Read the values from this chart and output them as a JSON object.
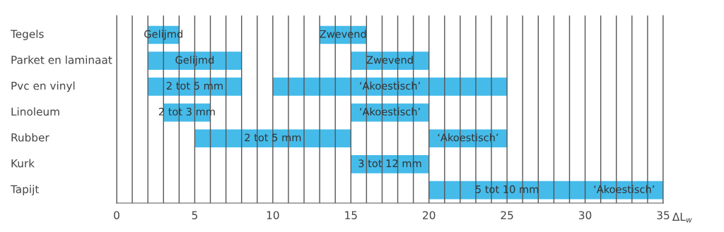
{
  "chart_data": {
    "type": "bar",
    "orientation": "horizontal",
    "xlabel": "ΔL$_{w}$",
    "categories": [
      "Tegels",
      "Parket en laminaat",
      "Pvc en vinyl",
      "Linoleum",
      "Rubber",
      "Kurk",
      "Tapijt"
    ],
    "series": [
      {
        "color": "#45bbea",
        "base": [
          2,
          2,
          2,
          3,
          5,
          null,
          20
        ],
        "values": [
          2,
          6,
          6,
          3,
          10,
          null,
          10
        ]
      },
      {
        "color": "#45bbea",
        "base": [
          13,
          15,
          10,
          15,
          20,
          15,
          30
        ],
        "values": [
          3,
          5,
          15,
          5,
          5,
          5,
          5
        ]
      }
    ],
    "annotations": [
      {
        "text": "Gelijmd",
        "x": 3,
        "y": "Tegels"
      },
      {
        "text": "Zwevend",
        "x": 14.5,
        "y": "Tegels"
      },
      {
        "text": "Gelijmd",
        "x": 5,
        "y": "Parket en laminaat"
      },
      {
        "text": "Zwevend",
        "x": 17.5,
        "y": "Parket en laminaat"
      },
      {
        "text": "2 tot 5 mm",
        "x": 5,
        "y": "Pvc en vinyl"
      },
      {
        "text": "‘Akoestisch’",
        "x": 17.5,
        "y": "Pvc en vinyl"
      },
      {
        "text": "2 tot 3 mm",
        "x": 4.5,
        "y": "Linoleum"
      },
      {
        "text": "‘Akoestisch’",
        "x": 17.5,
        "y": "Linoleum"
      },
      {
        "text": "2 tot 5 mm",
        "x": 10,
        "y": "Rubber"
      },
      {
        "text": "‘Akoestisch’",
        "x": 22.5,
        "y": "Rubber"
      },
      {
        "text": "3 tot 12 mm",
        "x": 17.5,
        "y": "Kurk"
      },
      {
        "text": "5 tot 10 mm",
        "x": 25,
        "y": "Tapijt"
      },
      {
        "text": "‘Akoestisch’",
        "x": 32.5,
        "y": "Tapijt"
      }
    ],
    "xlim": [
      0,
      35
    ],
    "xticks": [
      0,
      {
        "value": 1,
        "label": null
      },
      {
        "value": 2,
        "label": null
      },
      {
        "value": 3,
        "label": null
      },
      {
        "value": 4,
        "label": null
      },
      5,
      {
        "value": 6,
        "label": null
      },
      {
        "value": 7,
        "label": null
      },
      {
        "value": 8,
        "label": null
      },
      {
        "value": 9,
        "label": null
      },
      10,
      {
        "value": 11,
        "label": null
      },
      {
        "value": 12,
        "label": null
      },
      {
        "value": 13,
        "label": null
      },
      {
        "value": 14,
        "label": null
      },
      15,
      {
        "value": 16,
        "label": null
      },
      {
        "value": 17,
        "label": null
      },
      {
        "value": 18,
        "label": null
      },
      {
        "value": 19,
        "label": null
      },
      20,
      {
        "value": 21,
        "label": null
      },
      {
        "value": 22,
        "label": null
      },
      {
        "value": 23,
        "label": null
      },
      {
        "value": 24,
        "label": null
      },
      25,
      {
        "value": 26,
        "label": null
      },
      {
        "value": 27,
        "label": null
      },
      {
        "value": 28,
        "label": null
      },
      {
        "value": 29,
        "label": null
      },
      30,
      {
        "value": 31,
        "label": null
      },
      {
        "value": 32,
        "label": null
      },
      {
        "value": 33,
        "label": null
      },
      {
        "value": 34,
        "label": null
      },
      35
    ],
    "grid": "x",
    "legend": false
  }
}
